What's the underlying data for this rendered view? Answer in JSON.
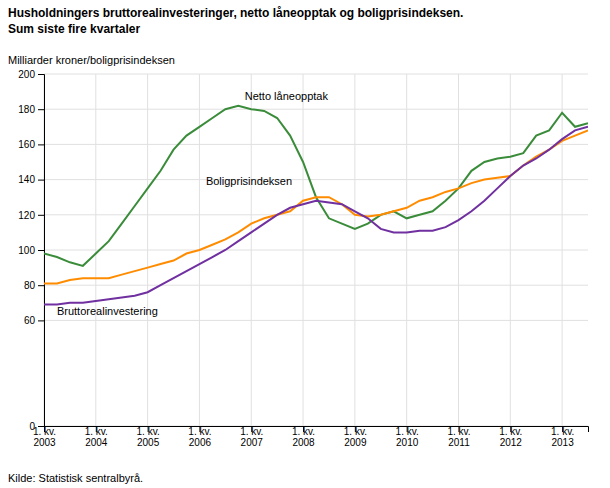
{
  "chart_data": {
    "type": "line",
    "title": "Husholdningers bruttorealinvesteringer, netto låneopptak og boligprisindeksen.",
    "subtitle": "Sum siste fire kvartaler",
    "y_label": "Milliarder kroner/boligprisindeksen",
    "source": "Kilde: Statistisk sentralbyrå.",
    "categories": [
      "1. kv.\n2003",
      null,
      null,
      null,
      "1. kv.\n2004",
      null,
      null,
      null,
      "1. kv.\n2005",
      null,
      null,
      null,
      "1. kv.\n2006",
      null,
      null,
      null,
      "1. kv.\n2007",
      null,
      null,
      null,
      "1. kv.\n2008",
      null,
      null,
      null,
      "1. kv.\n2009",
      null,
      null,
      null,
      "1. kv.\n2010",
      null,
      null,
      null,
      "1. kv.\n2011",
      null,
      null,
      null,
      "1. kv.\n2012",
      null,
      null,
      null,
      "1. kv.\n2013",
      null,
      null
    ],
    "series": [
      {
        "name": "Netto låneopptak",
        "color": "#3a8c3a",
        "values": [
          98,
          96,
          93,
          91,
          98,
          105,
          115,
          125,
          135,
          145,
          157,
          165,
          170,
          175,
          180,
          182,
          180,
          179,
          175,
          165,
          150,
          130,
          118,
          115,
          112,
          115,
          120,
          122,
          118,
          120,
          122,
          128,
          135,
          145,
          150,
          152,
          153,
          155,
          165,
          168,
          178,
          170,
          172
        ]
      },
      {
        "name": "Boligprisindeksen",
        "color": "#ff8c00",
        "values": [
          81,
          81,
          83,
          84,
          84,
          84,
          86,
          88,
          90,
          92,
          94,
          98,
          100,
          103,
          106,
          110,
          115,
          118,
          120,
          122,
          128,
          130,
          130,
          126,
          120,
          119,
          120,
          122,
          124,
          128,
          130,
          133,
          135,
          138,
          140,
          141,
          142,
          148,
          153,
          157,
          162,
          165,
          168
        ]
      },
      {
        "name": "Bruttorealinvestering",
        "color": "#7030a0",
        "values": [
          69,
          69,
          70,
          70,
          71,
          72,
          73,
          74,
          76,
          80,
          84,
          88,
          92,
          96,
          100,
          105,
          110,
          115,
          120,
          124,
          126,
          128,
          127,
          126,
          122,
          118,
          112,
          110,
          110,
          111,
          111,
          113,
          117,
          122,
          128,
          135,
          142,
          148,
          152,
          157,
          163,
          168,
          170
        ]
      }
    ],
    "annotations": [
      {
        "text": "Netto låneopptak",
        "x": 15.5,
        "y": 184
      },
      {
        "text": "Boligprisindeksen",
        "x": 12.5,
        "y": 136
      },
      {
        "text": "Bruttorealinvestering",
        "x": 1.0,
        "y": 62
      }
    ],
    "ylim": [
      0,
      200
    ],
    "yticks": [
      0,
      60,
      80,
      100,
      120,
      140,
      160,
      180,
      200
    ],
    "grid": true
  }
}
